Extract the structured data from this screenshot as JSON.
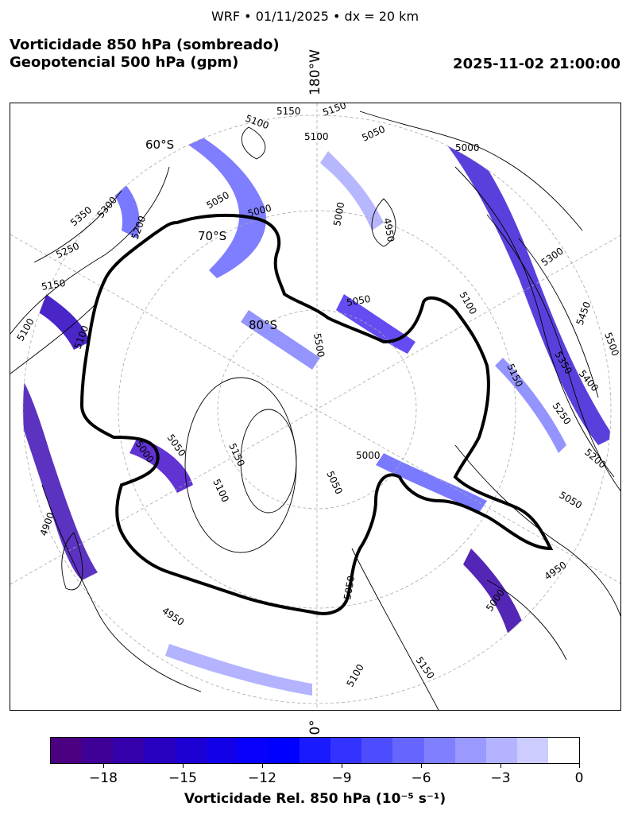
{
  "header": {
    "suptitle": "WRF • 01/11/2025 • dx = 20 km",
    "title_line1": "Vorticidade 850 hPa (sombreado)",
    "title_line2": "Geopotencial 500 hPa (gpm)",
    "valid_time": "2025-11-02 21:00:00"
  },
  "map": {
    "projection": "south-polar-stereographic",
    "longitude_labels": {
      "top": "180°W",
      "bottom": "0°"
    },
    "latitude_labels": [
      "60°S",
      "70°S",
      "80°S"
    ],
    "contour_labels": [
      "5150",
      "5150",
      "5100",
      "5100",
      "5050",
      "5000",
      "4950",
      "5050",
      "5000",
      "5000",
      "5350",
      "5300",
      "5250",
      "5200",
      "5150",
      "5100",
      "5100",
      "5300",
      "5450",
      "5500",
      "5350",
      "5400",
      "5150",
      "5250",
      "5200",
      "5050",
      "4950",
      "5000",
      "4900",
      "4950",
      "5000",
      "5050",
      "5150",
      "5100",
      "5050",
      "5000",
      "5050",
      "5100",
      "5150",
      "5500",
      "5100",
      "5050"
    ],
    "colors": {
      "coastline": "#000000",
      "contour": "#000000",
      "gridline": "#aaaaaa"
    }
  },
  "colorbar": {
    "label": "Vorticidade Rel. 850 hPa (10⁻⁵ s⁻¹)",
    "tick_labels": [
      "−18",
      "−15",
      "−12",
      "−9",
      "−6",
      "−3",
      "0"
    ],
    "range": [
      -20,
      0
    ],
    "colors": [
      "#4b0082",
      "#3f0096",
      "#3400ab",
      "#2800bf",
      "#1d00d3",
      "#1100e8",
      "#0600fc",
      "#0000ff",
      "#1a1aff",
      "#3333ff",
      "#4d4dff",
      "#6666ff",
      "#8080ff",
      "#9999ff",
      "#b3b3ff",
      "#ccccff",
      "#ffffff"
    ]
  }
}
